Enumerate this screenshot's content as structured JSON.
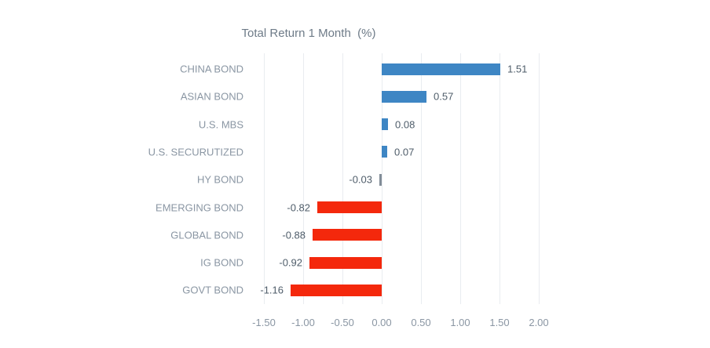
{
  "chart_data": {
    "type": "bar",
    "orientation": "horizontal",
    "title": "Total Return 1 Month  (%)",
    "categories": [
      "CHINA BOND",
      "ASIAN BOND",
      "U.S. MBS",
      "U.S. SECURUTIZED",
      "HY BOND",
      "EMERGING BOND",
      "GLOBAL BOND",
      "IG BOND",
      "GOVT BOND"
    ],
    "values": [
      1.51,
      0.57,
      0.08,
      0.07,
      -0.03,
      -0.82,
      -0.88,
      -0.92,
      -1.16
    ],
    "value_labels": [
      "1.51",
      "0.57",
      "0.08",
      "0.07",
      "-0.03",
      "-0.82",
      "-0.88",
      "-0.92",
      "-1.16"
    ],
    "bar_color_keys": [
      "positive",
      "positive",
      "positive",
      "positive",
      "neutral",
      "negative",
      "negative",
      "negative",
      "negative"
    ],
    "colors": {
      "positive": "#3e86c4",
      "negative": "#f4280c",
      "neutral": "#828d98"
    },
    "x_ticks": [
      -1.5,
      -1.0,
      -0.5,
      0.0,
      0.5,
      1.0,
      1.5,
      2.0
    ],
    "x_tick_labels": [
      "-1.50",
      "-1.00",
      "-0.50",
      "0.00",
      "0.50",
      "1.00",
      "1.50",
      "2.00"
    ],
    "xlim": [
      -1.5,
      2.0
    ],
    "grid": true,
    "legend": "none",
    "xlabel": "",
    "ylabel": ""
  }
}
